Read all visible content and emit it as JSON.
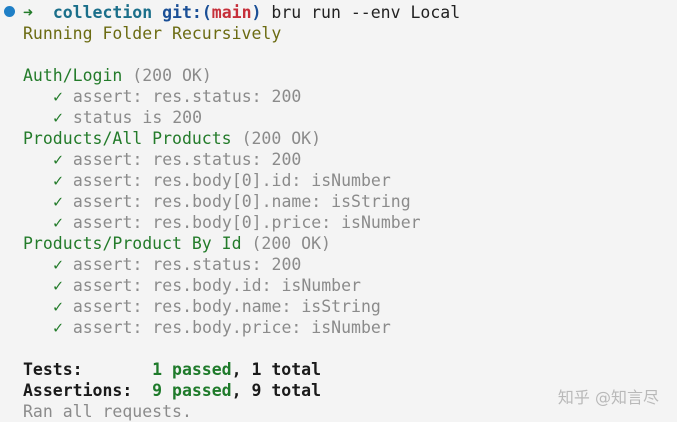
{
  "prompt": {
    "arrow": "➜",
    "dir": "collection",
    "git_open": "git:(",
    "branch": "main",
    "git_close": ")",
    "command": "bru run --env Local"
  },
  "status_line": "Running Folder Recursively",
  "requests": [
    {
      "name": "Auth/Login",
      "status": "(200 OK)",
      "checks": [
        "assert: res.status: 200",
        "status is 200"
      ]
    },
    {
      "name": "Products/All Products",
      "status": "(200 OK)",
      "checks": [
        "assert: res.status: 200",
        "assert: res.body[0].id: isNumber",
        "assert: res.body[0].name: isString",
        "assert: res.body[0].price: isNumber"
      ]
    },
    {
      "name": "Products/Product By Id",
      "status": "(200 OK)",
      "checks": [
        "assert: res.status: 200",
        "assert: res.body.id: isNumber",
        "assert: res.body.name: isString",
        "assert: res.body.price: isNumber"
      ]
    }
  ],
  "check_mark": "✓",
  "summary": {
    "tests_label": "Tests:       ",
    "tests_passed": "1 passed",
    "tests_total": ", 1 total",
    "assertions_label": "Assertions:  ",
    "assertions_passed": "9 passed",
    "assertions_total": ", 9 total",
    "footer": "Ran all requests."
  },
  "watermark": "知乎 @知言尽"
}
